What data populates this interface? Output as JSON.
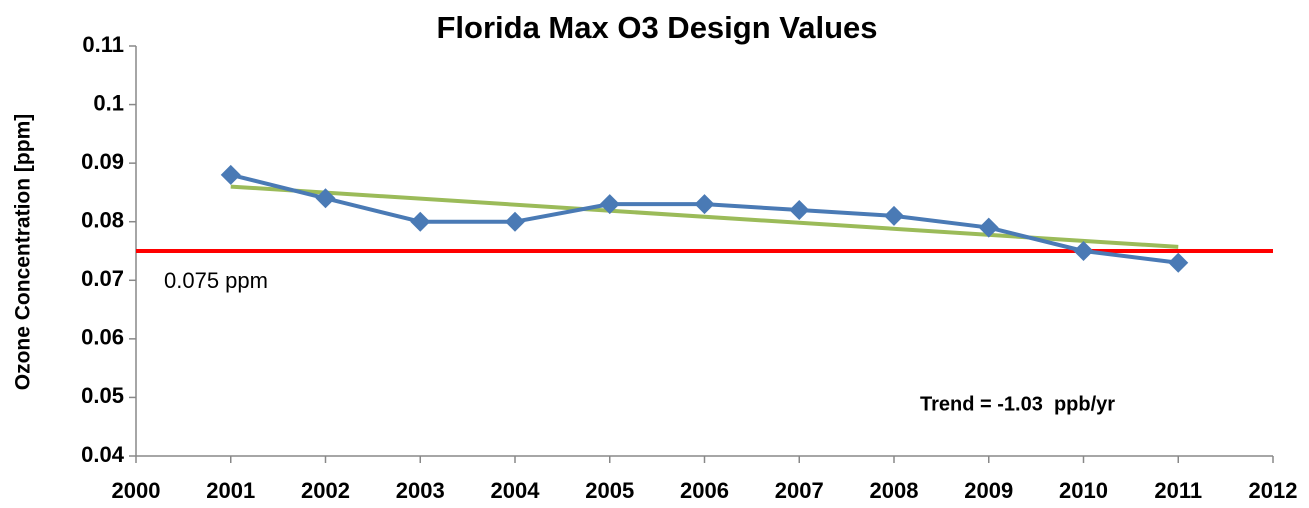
{
  "chart_data": {
    "type": "line",
    "title": "Florida Max O3 Design Values",
    "y_label": "Ozone Concentration [ppm]",
    "x": [
      2001,
      2002,
      2003,
      2004,
      2005,
      2006,
      2007,
      2008,
      2009,
      2010,
      2011
    ],
    "series": [
      {
        "color": "#4a7ab5",
        "marker": "diamond",
        "values": [
          0.088,
          0.084,
          0.08,
          0.08,
          0.083,
          0.083,
          0.082,
          0.081,
          0.079,
          0.075,
          0.073
        ]
      }
    ],
    "trend_line": {
      "x": [
        2001,
        2011
      ],
      "values": [
        0.086,
        0.0757
      ],
      "color": "#9bbb59"
    },
    "reference_line": {
      "value": 0.075,
      "label": "0.075 ppm",
      "color": "#ff0000"
    },
    "annotation": "Trend = -1.03  ppb/yr",
    "xlim": [
      2000,
      2012
    ],
    "xticks": [
      2000,
      2001,
      2002,
      2003,
      2004,
      2005,
      2006,
      2007,
      2008,
      2009,
      2010,
      2011,
      2012
    ],
    "ylim": [
      0.04,
      0.11
    ],
    "yticks": [
      0.04,
      0.05,
      0.06,
      0.07,
      0.08,
      0.09,
      0.1,
      0.11
    ],
    "grid": false
  }
}
